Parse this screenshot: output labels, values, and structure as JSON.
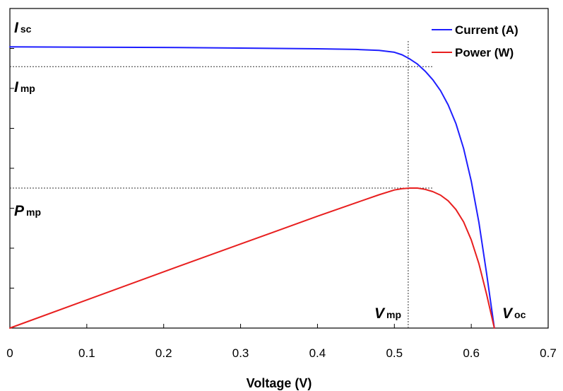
{
  "chart_data": {
    "type": "line",
    "xlabel": "Voltage (V)",
    "ylabel": "",
    "xlim": [
      0,
      0.7
    ],
    "ylim": [
      0,
      1.0
    ],
    "xticks": [
      "0",
      "0.1",
      "0.2",
      "0.3",
      "0.4",
      "0.5",
      "0.6",
      "0.7"
    ],
    "grid": false,
    "legend_position": "top-right",
    "series": [
      {
        "name": "Current (A)",
        "color": "#1f1fff",
        "x": [
          0,
          0.1,
          0.2,
          0.3,
          0.4,
          0.45,
          0.48,
          0.5,
          0.51,
          0.52,
          0.53,
          0.54,
          0.55,
          0.56,
          0.57,
          0.58,
          0.59,
          0.6,
          0.61,
          0.62,
          0.63
        ],
        "y": [
          0.88,
          0.879,
          0.878,
          0.876,
          0.874,
          0.872,
          0.869,
          0.863,
          0.855,
          0.842,
          0.826,
          0.804,
          0.777,
          0.743,
          0.698,
          0.64,
          0.562,
          0.46,
          0.33,
          0.17,
          0.0
        ]
      },
      {
        "name": "Power (W)",
        "color": "#e81f1f",
        "x": [
          0,
          0.1,
          0.2,
          0.3,
          0.4,
          0.45,
          0.48,
          0.5,
          0.51,
          0.52,
          0.53,
          0.54,
          0.55,
          0.56,
          0.57,
          0.58,
          0.59,
          0.6,
          0.61,
          0.62,
          0.63
        ],
        "y": [
          0.0,
          0.088,
          0.176,
          0.263,
          0.35,
          0.392,
          0.417,
          0.432,
          0.436,
          0.438,
          0.438,
          0.434,
          0.427,
          0.416,
          0.398,
          0.371,
          0.332,
          0.276,
          0.201,
          0.105,
          0.0
        ]
      }
    ],
    "reference_lines": [
      {
        "type": "horizontal",
        "y": 0.818,
        "x_from": 0,
        "x_to": 0.55
      },
      {
        "type": "horizontal",
        "y": 0.438,
        "x_from": 0,
        "x_to": 0.55
      },
      {
        "type": "vertical",
        "x": 0.518,
        "y_from": 0,
        "y_to": 0.9
      }
    ],
    "annotations": [
      {
        "id": "isc",
        "main": "I",
        "sub": "sc"
      },
      {
        "id": "imp",
        "main": "I",
        "sub": "mp"
      },
      {
        "id": "pmp",
        "main": "P",
        "sub": "mp"
      },
      {
        "id": "vmp",
        "main": "V",
        "sub": "mp"
      },
      {
        "id": "voc",
        "main": "V",
        "sub": "oc"
      }
    ]
  }
}
